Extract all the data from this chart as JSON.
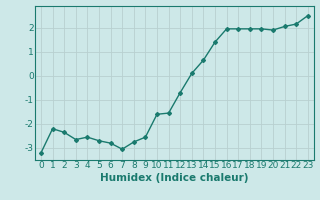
{
  "x": [
    0,
    1,
    2,
    3,
    4,
    5,
    6,
    7,
    8,
    9,
    10,
    11,
    12,
    13,
    14,
    15,
    16,
    17,
    18,
    19,
    20,
    21,
    22,
    23
  ],
  "y": [
    -3.2,
    -2.2,
    -2.35,
    -2.65,
    -2.55,
    -2.7,
    -2.8,
    -3.05,
    -2.75,
    -2.55,
    -1.6,
    -1.55,
    -0.7,
    0.1,
    0.65,
    1.4,
    1.95,
    1.95,
    1.95,
    1.95,
    1.9,
    2.05,
    2.15,
    2.5
  ],
  "line_color": "#1a7a6e",
  "bg_color": "#cde8e8",
  "grid_color": "#b8d0d0",
  "xlabel": "Humidex (Indice chaleur)",
  "ylim": [
    -3.5,
    2.9
  ],
  "xlim": [
    -0.5,
    23.5
  ],
  "yticks": [
    -3,
    -2,
    -1,
    0,
    1,
    2
  ],
  "xticks": [
    0,
    1,
    2,
    3,
    4,
    5,
    6,
    7,
    8,
    9,
    10,
    11,
    12,
    13,
    14,
    15,
    16,
    17,
    18,
    19,
    20,
    21,
    22,
    23
  ],
  "xlabel_fontsize": 7.5,
  "tick_fontsize": 6.5,
  "marker": "D",
  "marker_size": 2.0,
  "linewidth": 1.0
}
